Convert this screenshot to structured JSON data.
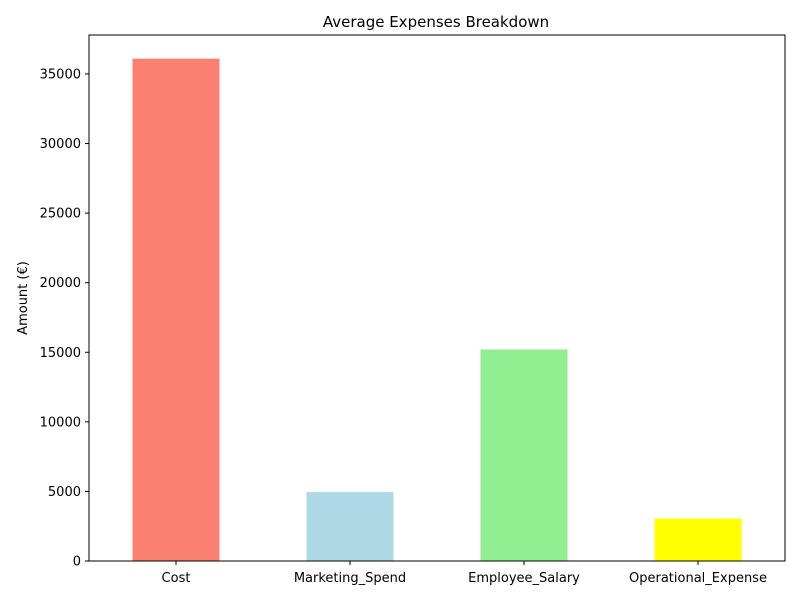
{
  "chart_data": {
    "type": "bar",
    "title": "Average Expenses Breakdown",
    "xlabel": "",
    "ylabel": "Amount (€)",
    "categories": [
      "Cost",
      "Marketing_Spend",
      "Employee_Salary",
      "Operational_Expense"
    ],
    "values": [
      36100,
      4950,
      15200,
      3050
    ],
    "colors": [
      "#fa8072",
      "#add8e6",
      "#90ee90",
      "#ffff00"
    ],
    "ylim": [
      0,
      37800
    ],
    "yticks": [
      0,
      5000,
      10000,
      15000,
      20000,
      25000,
      30000,
      35000
    ],
    "grid": false,
    "legend": "none"
  }
}
